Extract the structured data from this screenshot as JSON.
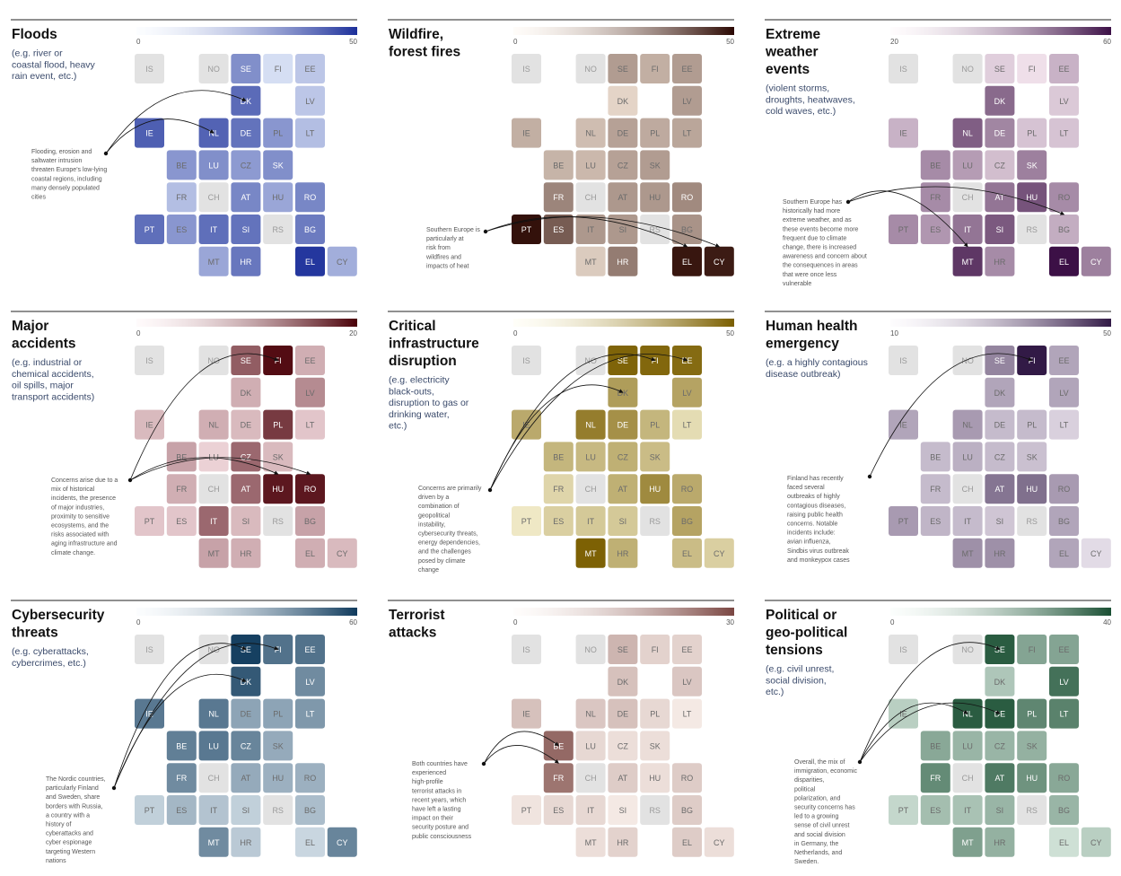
{
  "countries_order": [
    "IS",
    "NO",
    "SE",
    "FI",
    "EE",
    "DK",
    "LV",
    "IE",
    "NL",
    "DE",
    "PL",
    "LT",
    "BE",
    "LU",
    "CZ",
    "SK",
    "FR",
    "CH",
    "AT",
    "HU",
    "RO",
    "PT",
    "ES",
    "IT",
    "SI",
    "RS",
    "BG",
    "MT",
    "HR",
    "EL",
    "CY"
  ],
  "chart_data": [
    {
      "type": "heatmap",
      "title": "Floods",
      "subtitle": "(e.g. river or coastal flood, heavy rain event, etc.)",
      "scale": {
        "min": 0,
        "max": 50,
        "min_label": "0",
        "max_label": "50",
        "colors": [
          "#eef6ff",
          "#1c2f9a"
        ]
      },
      "annotation": "Flooding, erosion and saltwater intrusion threaten Europe's low-lying coastal regions, including many densely populated cities",
      "arrow_targets": [
        "DK",
        "NL"
      ],
      "values": {
        "IS": null,
        "NO": null,
        "SE": 26,
        "FI": 6,
        "EE": 12,
        "DK": 35,
        "LV": 12,
        "IE": 38,
        "NL": 37,
        "DE": 33,
        "PL": 24,
        "LT": 14,
        "BE": 24,
        "LU": 26,
        "CZ": 23,
        "SK": 26,
        "FR": 14,
        "CH": null,
        "AT": 28,
        "HU": 20,
        "RO": 28,
        "PT": 34,
        "ES": 24,
        "IT": 34,
        "SI": 33,
        "RS": null,
        "BG": 31,
        "MT": 20,
        "HR": 32,
        "EL": 48,
        "CY": 18
      }
    },
    {
      "type": "heatmap",
      "title": "Wildfire, forest fires",
      "subtitle": "",
      "scale": {
        "min": 0,
        "max": 50,
        "min_label": "0",
        "max_label": "50",
        "colors": [
          "#fdf0e2",
          "#2b0802"
        ]
      },
      "annotation": "Southern Europe is particularly at risk from wildfires and impacts of heat",
      "arrow_targets": [
        "EL",
        "CY"
      ],
      "values": {
        "IS": null,
        "NO": null,
        "SE": 18,
        "FI": 14,
        "EE": 18,
        "DK": 6,
        "LV": 18,
        "IE": 14,
        "NL": 11,
        "DE": 17,
        "PL": 15,
        "LT": 16,
        "BE": 13,
        "LU": 12,
        "CZ": 17,
        "SK": 18,
        "FR": 23,
        "CH": null,
        "AT": 19,
        "HU": 19,
        "RO": 22,
        "PT": 48,
        "ES": 32,
        "IT": 19,
        "SI": 19,
        "RS": null,
        "BG": 20,
        "MT": 8,
        "HR": 25,
        "EL": 47,
        "CY": 46
      }
    },
    {
      "type": "heatmap",
      "title": "Extreme weather events",
      "subtitle": "(violent storms, droughts, heatwaves, cold waves, etc.)",
      "scale": {
        "min": 20,
        "max": 60,
        "min_label": "20",
        "max_label": "60",
        "colors": [
          "#fdf0f6",
          "#3c1046"
        ]
      },
      "annotation": "Southern Europe has historically had more extreme weather, and as these events become more frequent due to climate change, there is increased awareness and concern about the consequences in areas that were once less vulnerable",
      "arrow_targets": [
        "MT",
        "BG"
      ],
      "values": {
        "IS": null,
        "NO": null,
        "SE": 26,
        "FI": 23,
        "EE": 31,
        "DK": 44,
        "LV": 27,
        "IE": 31,
        "NL": 46,
        "DE": 39,
        "PL": 28,
        "LT": 28,
        "BE": 38,
        "LU": 35,
        "CZ": 29,
        "SK": 40,
        "FR": 38,
        "CH": null,
        "AT": 42,
        "HU": 48,
        "RO": 38,
        "PT": 38,
        "ES": 36,
        "IT": 42,
        "SI": 47,
        "RS": null,
        "BG": 32,
        "MT": 53,
        "HR": 38,
        "EL": 60,
        "CY": 40
      }
    },
    {
      "type": "heatmap",
      "title": "Major accidents",
      "subtitle": "(e.g. industrial or chemical accidents, oil spills, major transport accidents)",
      "scale": {
        "min": 0,
        "max": 20,
        "min_label": "0",
        "max_label": "20",
        "colors": [
          "#fde8ec",
          "#4a0008"
        ]
      },
      "annotation": "Concerns arise due to a mix of historical incidents, the presence of major industries, proximity to sensitive ecosystems, and the risks associated with aging infrastructure and climate change.",
      "arrow_targets": [
        "FI",
        "HU",
        "RO"
      ],
      "values": {
        "IS": null,
        "NO": null,
        "SE": 12,
        "FI": 19,
        "EE": 5,
        "DK": 5,
        "LV": 8,
        "IE": 4,
        "NL": 5,
        "DE": 4,
        "PL": 15,
        "LT": 3,
        "BE": 6,
        "LU": 2,
        "CZ": 11,
        "SK": 4,
        "FR": 5,
        "CH": null,
        "AT": 11,
        "HU": 18,
        "RO": 18,
        "PT": 3,
        "ES": 3,
        "IT": 11,
        "SI": 4,
        "RS": null,
        "BG": 6,
        "MT": 6,
        "HR": 5,
        "EL": 5,
        "CY": 4
      }
    },
    {
      "type": "heatmap",
      "title": "Critical infrastructure disruption",
      "subtitle": "(e.g. electricity black-outs, disruption to gas or drinking water, etc.)",
      "scale": {
        "min": 0,
        "max": 50,
        "min_label": "0",
        "max_label": "50",
        "colors": [
          "#fffbe0",
          "#7a5e00"
        ]
      },
      "annotation": "Concerns are primarily driven by a combination of geopolitical instability, cybersecurity threats, energy dependencies, and the challenges posed by climate change",
      "arrow_targets": [
        "DK",
        "FI",
        "EE"
      ],
      "values": {
        "IS": null,
        "NO": null,
        "SE": 48,
        "FI": 47,
        "EE": 46,
        "DK": 30,
        "LV": 28,
        "IE": 26,
        "NL": 40,
        "DE": 34,
        "PL": 22,
        "LT": 10,
        "BE": 22,
        "LU": 21,
        "CZ": 24,
        "SK": 20,
        "FR": 12,
        "CH": null,
        "AT": 24,
        "HU": 36,
        "RO": 26,
        "PT": 6,
        "ES": 14,
        "IT": 16,
        "SI": 16,
        "RS": null,
        "BG": 28,
        "MT": 49,
        "HR": 24,
        "EL": 20,
        "CY": 14
      }
    },
    {
      "type": "heatmap",
      "title": "Human health emergency",
      "subtitle": "(e.g. a highly contagious disease outbreak)",
      "scale": {
        "min": 10,
        "max": 50,
        "min_label": "10",
        "max_label": "50",
        "colors": [
          "#f6f0f8",
          "#321a46"
        ]
      },
      "annotation": "Finland has recently faced several outbreaks of highly contagious diseases, raising public health concerns. Notable incidents include: avian influenza, Sindbis virus outbreak and monkeypox cases",
      "arrow_targets": [
        "FI"
      ],
      "values": {
        "IS": null,
        "NO": null,
        "SE": 30,
        "FI": 50,
        "EE": 24,
        "DK": 24,
        "LV": 24,
        "IE": 24,
        "NL": 26,
        "DE": 20,
        "PL": 20,
        "LT": 16,
        "BE": 20,
        "LU": 22,
        "CZ": 20,
        "SK": 19,
        "FR": 20,
        "CH": null,
        "AT": 33,
        "HU": 34,
        "RO": 26,
        "PT": 26,
        "ES": 21,
        "IT": 20,
        "SI": 18,
        "RS": null,
        "BG": 24,
        "MT": 28,
        "HR": 28,
        "EL": 24,
        "CY": 14
      }
    },
    {
      "type": "heatmap",
      "title": "Cybersecurity threats",
      "subtitle": "(e.g. cyberattacks, cybercrimes, etc.)",
      "scale": {
        "min": 0,
        "max": 60,
        "min_label": "0",
        "max_label": "60",
        "colors": [
          "#eef5fa",
          "#0f3a5c"
        ]
      },
      "annotation": "The Nordic countries, particularly Finland and Sweden, share borders with Russia, a country with a history of cyberattacks and cyber espionage targeting Western nations",
      "arrow_targets": [
        "SE",
        "FI",
        "DK"
      ],
      "values": {
        "IS": null,
        "NO": null,
        "SE": 58,
        "FI": 42,
        "EE": 42,
        "DK": 50,
        "LV": 34,
        "IE": 40,
        "NL": 40,
        "DE": 26,
        "PL": 26,
        "LT": 30,
        "BE": 38,
        "LU": 40,
        "CZ": 36,
        "SK": 24,
        "FR": 34,
        "CH": null,
        "AT": 24,
        "HU": 22,
        "RO": 22,
        "PT": 12,
        "ES": 20,
        "IT": 16,
        "SI": 12,
        "RS": null,
        "BG": 18,
        "MT": 34,
        "HR": 14,
        "EL": 10,
        "CY": 36
      }
    },
    {
      "type": "heatmap",
      "title": "Terrorist attacks",
      "subtitle": "",
      "scale": {
        "min": 0,
        "max": 30,
        "min_label": "0",
        "max_label": "30",
        "colors": [
          "#fdf5f0",
          "#7a4642"
        ]
      },
      "annotation": "Both countries have experienced high-profile terrorist attacks in recent years, which have left a lasting impact on their security posture and public consciousness",
      "arrow_targets": [
        "BE",
        "FR"
      ],
      "values": {
        "IS": null,
        "NO": null,
        "SE": 11,
        "FI": 6,
        "EE": 6,
        "DK": 9,
        "LV": 8,
        "IE": 9,
        "NL": 8,
        "DE": 9,
        "PL": 5,
        "LT": 2,
        "BE": 24,
        "LU": 5,
        "CZ": 4,
        "SK": 4,
        "FR": 22,
        "CH": null,
        "AT": 7,
        "HU": 4,
        "RO": 7,
        "PT": 3,
        "ES": 5,
        "IT": 5,
        "SI": 2,
        "RS": null,
        "BG": 7,
        "MT": 4,
        "HR": 6,
        "EL": 7,
        "CY": 4
      }
    },
    {
      "type": "heatmap",
      "title": "Political or geo-political tensions",
      "subtitle": "(e.g. civil unrest, social division, etc.)",
      "scale": {
        "min": 0,
        "max": 40,
        "min_label": "0",
        "max_label": "40",
        "colors": [
          "#eef9f2",
          "#1a4f33"
        ]
      },
      "annotation": "Overall, the mix of immigration, economic disparities, political polarization, and security concerns has led to a growing sense of civil unrest and social division in Germany, the Netherlands, and Sweden.",
      "arrow_targets": [
        "SE",
        "NL",
        "DE"
      ],
      "values": {
        "IS": null,
        "NO": null,
        "SE": 37,
        "FI": 20,
        "EE": 20,
        "DK": 12,
        "LV": 32,
        "IE": 10,
        "NL": 37,
        "DE": 37,
        "PL": 27,
        "LT": 28,
        "BE": 19,
        "LU": 16,
        "CZ": 16,
        "SK": 17,
        "FR": 26,
        "CH": null,
        "AT": 30,
        "HU": 24,
        "RO": 19,
        "PT": 8,
        "ES": 14,
        "IT": 13,
        "SI": 16,
        "RS": null,
        "BG": 16,
        "MT": 21,
        "HR": 17,
        "EL": 6,
        "CY": 10
      }
    }
  ]
}
